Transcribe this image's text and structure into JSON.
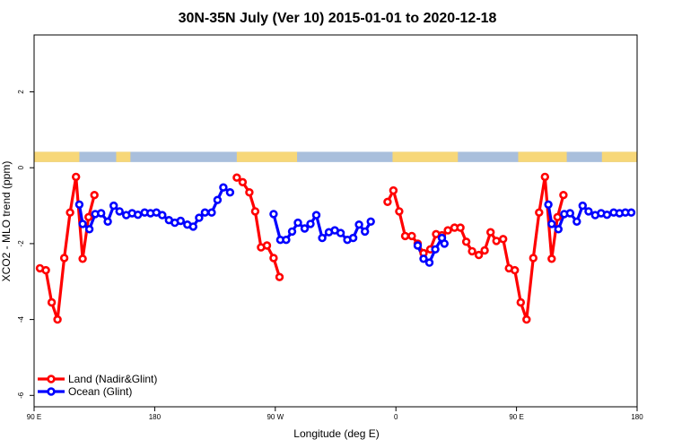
{
  "chart_data": {
    "type": "line",
    "title": "30N-35N July (Ver 10)   2015-01-01 to 2020-12-18",
    "xlabel": "Longitude (deg E)",
    "ylabel": "XCO2 - MLO trend (ppm)",
    "xlim": [
      90,
      450
    ],
    "ylim": [
      -6.3,
      3.5
    ],
    "x_ticks": [
      {
        "value": 90,
        "label": "90 E"
      },
      {
        "value": 162,
        "label": "180"
      },
      {
        "value": 234,
        "label": "90 W"
      },
      {
        "value": 306,
        "label": "0"
      },
      {
        "value": 378,
        "label": "90 E"
      },
      {
        "value": 450,
        "label": "180"
      }
    ],
    "y_ticks": [
      {
        "value": -6,
        "label": "-6"
      },
      {
        "value": -4,
        "label": "-4"
      },
      {
        "value": -2,
        "label": "-2"
      },
      {
        "value": 0,
        "label": "0"
      },
      {
        "value": 2,
        "label": "2"
      }
    ],
    "land_mask": {
      "ymin": 0.15,
      "ymax": 0.42,
      "ocean_color": "#a9bfdc",
      "land_color": "#f7d778",
      "land_ranges": [
        [
          90,
          117
        ],
        [
          139,
          147.5
        ],
        [
          211,
          247
        ],
        [
          304,
          343
        ],
        [
          379,
          408
        ],
        [
          429,
          450
        ]
      ]
    },
    "series": [
      {
        "name": "Land (Nadir&Glint)",
        "color": "#ff0000",
        "segments": [
          [
            [
              93.5,
              -2.65
            ],
            [
              97,
              -2.7
            ],
            [
              100.5,
              -3.55
            ],
            [
              104,
              -4.0
            ],
            [
              108,
              -2.38
            ],
            [
              111.5,
              -1.18
            ],
            [
              115,
              -0.24
            ],
            [
              119,
              -2.4
            ],
            [
              122.5,
              -1.3
            ],
            [
              126,
              -0.72
            ]
          ],
          [
            [
              211,
              -0.26
            ],
            [
              214.5,
              -0.38
            ],
            [
              218.5,
              -0.65
            ],
            [
              222,
              -1.15
            ],
            [
              225.5,
              -2.1
            ],
            [
              229,
              -2.05
            ],
            [
              233,
              -2.38
            ],
            [
              236.5,
              -2.88
            ]
          ],
          [
            [
              301,
              -0.9
            ],
            [
              304.5,
              -0.6
            ],
            [
              308,
              -1.15
            ],
            [
              311.5,
              -1.8
            ],
            [
              315.5,
              -1.8
            ],
            [
              319,
              -2.0
            ],
            [
              322.5,
              -2.25
            ],
            [
              326.5,
              -2.15
            ],
            [
              330,
              -1.75
            ],
            [
              333.5,
              -1.78
            ],
            [
              337,
              -1.65
            ],
            [
              341,
              -1.58
            ],
            [
              344.5,
              -1.58
            ],
            [
              348,
              -1.95
            ],
            [
              351.5,
              -2.2
            ],
            [
              355.5,
              -2.3
            ],
            [
              359,
              -2.18
            ],
            [
              362.5,
              -1.7
            ],
            [
              366,
              -1.93
            ],
            [
              370,
              -1.88
            ],
            [
              373.5,
              -2.65
            ],
            [
              377,
              -2.7
            ],
            [
              380.5,
              -3.55
            ],
            [
              384,
              -4.0
            ],
            [
              388,
              -2.38
            ],
            [
              391.5,
              -1.18
            ],
            [
              395,
              -0.24
            ],
            [
              399,
              -2.4
            ],
            [
              402.5,
              -1.3
            ],
            [
              406,
              -0.72
            ]
          ]
        ]
      },
      {
        "name": "Ocean (Glint)",
        "color": "#0000ff",
        "segments": [
          [
            [
              117,
              -0.97
            ],
            [
              119,
              -1.48
            ],
            [
              123,
              -1.62
            ],
            [
              126.5,
              -1.22
            ],
            [
              130,
              -1.2
            ],
            [
              134,
              -1.42
            ],
            [
              137.5,
              -1.0
            ],
            [
              141,
              -1.15
            ],
            [
              145,
              -1.25
            ],
            [
              148.5,
              -1.2
            ],
            [
              152,
              -1.24
            ],
            [
              156,
              -1.18
            ],
            [
              159.5,
              -1.2
            ],
            [
              163,
              -1.18
            ],
            [
              166.5,
              -1.25
            ],
            [
              170.5,
              -1.38
            ],
            [
              174,
              -1.45
            ],
            [
              177.5,
              -1.4
            ],
            [
              181.5,
              -1.5
            ],
            [
              185,
              -1.55
            ],
            [
              188.5,
              -1.32
            ],
            [
              192,
              -1.18
            ],
            [
              196,
              -1.18
            ],
            [
              199.5,
              -0.85
            ],
            [
              203,
              -0.52
            ],
            [
              207,
              -0.65
            ]
          ],
          [
            [
              233,
              -1.22
            ],
            [
              237,
              -1.9
            ],
            [
              240.5,
              -1.9
            ],
            [
              244,
              -1.68
            ],
            [
              247.5,
              -1.45
            ],
            [
              251.5,
              -1.6
            ],
            [
              255,
              -1.48
            ],
            [
              258.5,
              -1.25
            ],
            [
              262,
              -1.85
            ],
            [
              266,
              -1.7
            ],
            [
              269.5,
              -1.65
            ],
            [
              273,
              -1.72
            ],
            [
              277,
              -1.9
            ],
            [
              280.5,
              -1.85
            ],
            [
              284,
              -1.5
            ],
            [
              287.5,
              -1.68
            ],
            [
              291,
              -1.42
            ]
          ],
          [
            [
              319,
              -2.05
            ],
            [
              322.5,
              -2.4
            ],
            [
              326,
              -2.5
            ],
            [
              329.5,
              -2.15
            ],
            [
              333.5,
              -1.85
            ],
            [
              335,
              -2.0
            ]
          ],
          [
            [
              397,
              -0.97
            ],
            [
              399,
              -1.48
            ],
            [
              403,
              -1.62
            ],
            [
              406.5,
              -1.22
            ],
            [
              410,
              -1.2
            ],
            [
              414,
              -1.42
            ],
            [
              417.5,
              -1.0
            ],
            [
              421,
              -1.15
            ],
            [
              425,
              -1.25
            ],
            [
              428.5,
              -1.2
            ],
            [
              432,
              -1.24
            ],
            [
              436,
              -1.18
            ],
            [
              439.5,
              -1.2
            ],
            [
              443,
              -1.18
            ],
            [
              446.5,
              -1.18
            ]
          ]
        ]
      }
    ],
    "legend_position": "bottom-left"
  }
}
